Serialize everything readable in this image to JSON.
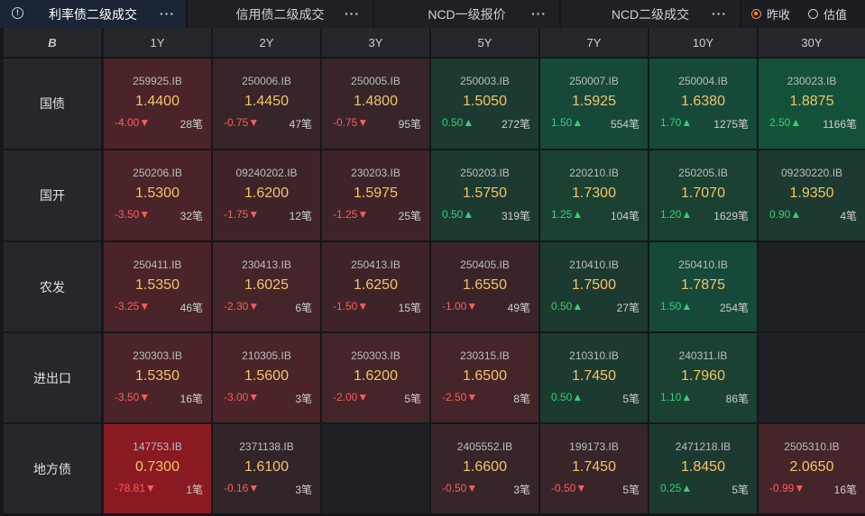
{
  "tabs": [
    {
      "label": "利率债二级成交",
      "active": true
    },
    {
      "label": "信用债二级成交",
      "active": false
    },
    {
      "label": "NCD一级报价",
      "active": false
    },
    {
      "label": "NCD二级成交",
      "active": false
    }
  ],
  "tab_more": "···",
  "info_icon": "!",
  "corner_logo": "B",
  "radios": [
    {
      "label": "昨收",
      "selected": true
    },
    {
      "label": "估值",
      "selected": false
    }
  ],
  "columns": [
    "1Y",
    "2Y",
    "3Y",
    "5Y",
    "7Y",
    "10Y",
    "30Y"
  ],
  "rows": [
    {
      "label": "国债",
      "cells": [
        {
          "code": "259925.IB",
          "rate": "1.4400",
          "chg": "-4.00▼",
          "dir": "down",
          "count": "28笔",
          "bg": "#4a2428"
        },
        {
          "code": "250006.IB",
          "rate": "1.4450",
          "chg": "-0.75▼",
          "dir": "down",
          "count": "47笔",
          "bg": "#37252a"
        },
        {
          "code": "250005.IB",
          "rate": "1.4800",
          "chg": "-0.75▼",
          "dir": "down",
          "count": "95笔",
          "bg": "#37252a"
        },
        {
          "code": "250003.IB",
          "rate": "1.5050",
          "chg": "0.50▲",
          "dir": "up",
          "count": "272笔",
          "bg": "#1c3a2f"
        },
        {
          "code": "250007.IB",
          "rate": "1.5925",
          "chg": "1.50▲",
          "dir": "up",
          "count": "554笔",
          "bg": "#16493a"
        },
        {
          "code": "250004.IB",
          "rate": "1.6380",
          "chg": "1.70▲",
          "dir": "up",
          "count": "1275笔",
          "bg": "#16493a"
        },
        {
          "code": "230023.IB",
          "rate": "1.8875",
          "chg": "2.50▲",
          "dir": "up",
          "count": "1166笔",
          "bg": "#135238"
        }
      ]
    },
    {
      "label": "国开",
      "cells": [
        {
          "code": "250206.IB",
          "rate": "1.5300",
          "chg": "-3.50▼",
          "dir": "down",
          "count": "32笔",
          "bg": "#4a2428"
        },
        {
          "code": "09240202.IB",
          "rate": "1.6200",
          "chg": "-1.75▼",
          "dir": "down",
          "count": "12笔",
          "bg": "#3e2429"
        },
        {
          "code": "230203.IB",
          "rate": "1.5975",
          "chg": "-1.25▼",
          "dir": "down",
          "count": "25笔",
          "bg": "#3e2429"
        },
        {
          "code": "250203.IB",
          "rate": "1.5750",
          "chg": "0.50▲",
          "dir": "up",
          "count": "319笔",
          "bg": "#1c3a2f"
        },
        {
          "code": "220210.IB",
          "rate": "1.7300",
          "chg": "1.25▲",
          "dir": "up",
          "count": "104笔",
          "bg": "#1a4131"
        },
        {
          "code": "250205.IB",
          "rate": "1.7070",
          "chg": "1.20▲",
          "dir": "up",
          "count": "1629笔",
          "bg": "#1a4131"
        },
        {
          "code": "09230220.IB",
          "rate": "1.9350",
          "chg": "0.90▲",
          "dir": "up",
          "count": "4笔",
          "bg": "#1c3a2f"
        }
      ]
    },
    {
      "label": "农发",
      "cells": [
        {
          "code": "250411.IB",
          "rate": "1.5350",
          "chg": "-3.25▼",
          "dir": "down",
          "count": "46笔",
          "bg": "#4a2428"
        },
        {
          "code": "230413.IB",
          "rate": "1.6025",
          "chg": "-2.30▼",
          "dir": "down",
          "count": "6笔",
          "bg": "#442529"
        },
        {
          "code": "250413.IB",
          "rate": "1.6250",
          "chg": "-1.50▼",
          "dir": "down",
          "count": "15笔",
          "bg": "#3e2429"
        },
        {
          "code": "250405.IB",
          "rate": "1.6550",
          "chg": "-1.00▼",
          "dir": "down",
          "count": "49笔",
          "bg": "#3a2429"
        },
        {
          "code": "210410.IB",
          "rate": "1.7500",
          "chg": "0.50▲",
          "dir": "up",
          "count": "27笔",
          "bg": "#1c3a2f"
        },
        {
          "code": "250410.IB",
          "rate": "1.7875",
          "chg": "1.50▲",
          "dir": "up",
          "count": "254笔",
          "bg": "#16493a"
        },
        null
      ]
    },
    {
      "label": "进出口",
      "cells": [
        {
          "code": "230303.IB",
          "rate": "1.5350",
          "chg": "-3.50▼",
          "dir": "down",
          "count": "16笔",
          "bg": "#4a2428"
        },
        {
          "code": "210305.IB",
          "rate": "1.5600",
          "chg": "-3.00▼",
          "dir": "down",
          "count": "3笔",
          "bg": "#4a2428"
        },
        {
          "code": "250303.IB",
          "rate": "1.6200",
          "chg": "-2.00▼",
          "dir": "down",
          "count": "5笔",
          "bg": "#442529"
        },
        {
          "code": "230315.IB",
          "rate": "1.6500",
          "chg": "-2.50▼",
          "dir": "down",
          "count": "8笔",
          "bg": "#442529"
        },
        {
          "code": "210310.IB",
          "rate": "1.7450",
          "chg": "0.50▲",
          "dir": "up",
          "count": "5笔",
          "bg": "#1c3a2f"
        },
        {
          "code": "240311.IB",
          "rate": "1.7960",
          "chg": "1.10▲",
          "dir": "up",
          "count": "86笔",
          "bg": "#1a4131"
        },
        null
      ]
    },
    {
      "label": "地方债",
      "cells": [
        {
          "code": "147753.IB",
          "rate": "0.7300",
          "chg": "-78.81▼",
          "dir": "down",
          "count": "1笔",
          "bg": "#8a1a22"
        },
        {
          "code": "2371138.IB",
          "rate": "1.6100",
          "chg": "-0.16▼",
          "dir": "down",
          "count": "3笔",
          "bg": "#32252a"
        },
        null,
        {
          "code": "2405552.IB",
          "rate": "1.6600",
          "chg": "-0.50▼",
          "dir": "down",
          "count": "3笔",
          "bg": "#37252a"
        },
        {
          "code": "199173.IB",
          "rate": "1.7450",
          "chg": "-0.50▼",
          "dir": "down",
          "count": "5笔",
          "bg": "#37252a"
        },
        {
          "code": "2471218.IB",
          "rate": "1.8450",
          "chg": "0.25▲",
          "dir": "up",
          "count": "5笔",
          "bg": "#1c3a2f"
        },
        {
          "code": "2505310.IB",
          "rate": "2.0650",
          "chg": "-0.99▼",
          "dir": "down",
          "count": "16笔",
          "bg": "#442529"
        }
      ]
    }
  ]
}
